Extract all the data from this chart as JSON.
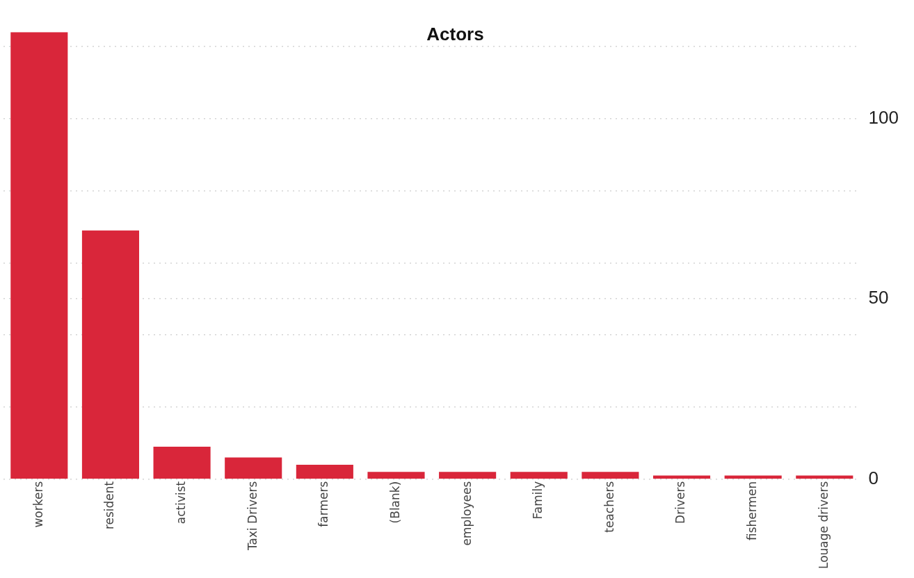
{
  "chart_data": {
    "type": "bar",
    "title": "Actors",
    "categories": [
      "workers",
      "resident",
      "activist",
      "Taxi Drivers",
      "farmers",
      "(Blank)",
      "employees",
      "Family",
      "teachers",
      "Drivers",
      "fishermen",
      "Louage drivers"
    ],
    "values": [
      124,
      69,
      9,
      6,
      4,
      2,
      2,
      2,
      2,
      1,
      1,
      1
    ],
    "color": "#d9263a",
    "ylim": [
      0,
      124
    ],
    "yticks": [
      0,
      {
        "value": 20,
        "label": null
      },
      {
        "value": 40,
        "label": null
      },
      50,
      {
        "value": 60,
        "label": null
      },
      {
        "value": 80,
        "label": null
      },
      100,
      {
        "value": 120,
        "label": null
      }
    ],
    "grid": "y",
    "legend": false
  }
}
